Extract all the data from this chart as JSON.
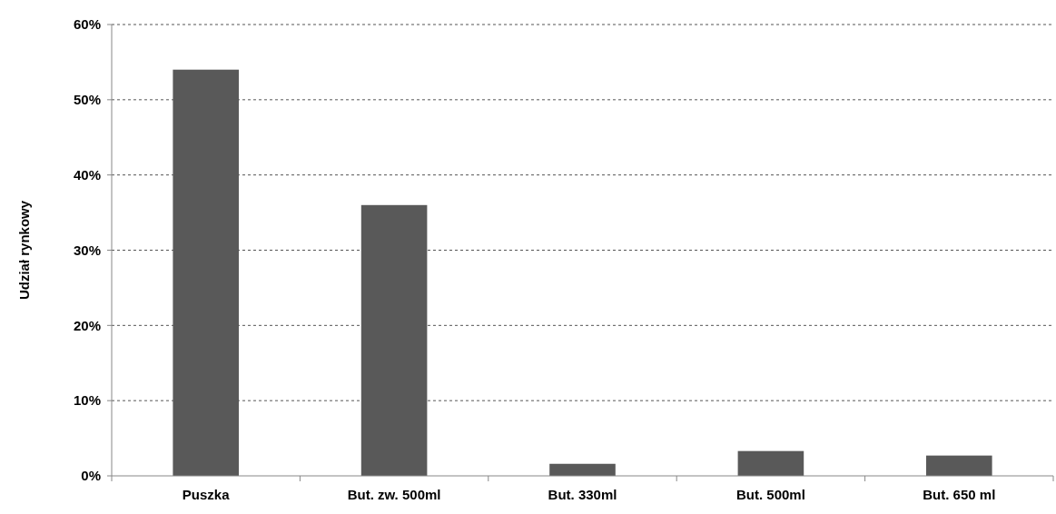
{
  "chart_data": {
    "type": "bar",
    "ylabel": "Udział rynkowy",
    "categories": [
      "Puszka",
      "But. zw. 500ml",
      "But. 330ml",
      "But. 500ml",
      "But. 650 ml"
    ],
    "values": [
      54,
      36,
      1.6,
      3.3,
      2.7
    ],
    "color": "#595959",
    "ylim": [
      0,
      60
    ],
    "yticks": [
      {
        "value": 0,
        "label": "0%"
      },
      {
        "value": 10,
        "label": "10%"
      },
      {
        "value": 20,
        "label": "20%"
      },
      {
        "value": 30,
        "label": "30%"
      },
      {
        "value": 40,
        "label": "40%"
      },
      {
        "value": 50,
        "label": "50%"
      },
      {
        "value": 60,
        "label": "60%"
      }
    ],
    "grid": "y"
  }
}
